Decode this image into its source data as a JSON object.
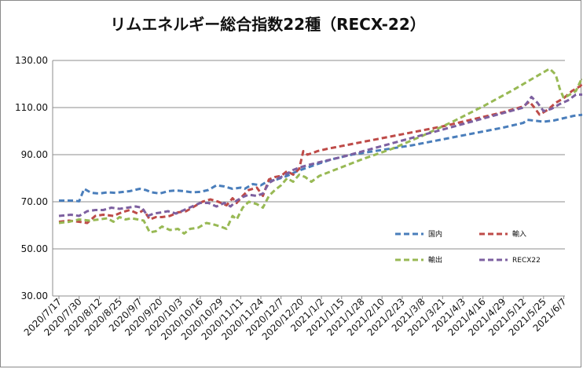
{
  "chart_data": {
    "type": "line",
    "title": "リムエネルギー総合指数22種（RECX-22）",
    "xlabel": "",
    "ylabel": "",
    "ylim": [
      30,
      130
    ],
    "yticks": [
      "30.00",
      "50.00",
      "70.00",
      "90.00",
      "110.00",
      "130.00"
    ],
    "grid": "horizontal",
    "legend": "inside-lower-right, two columns",
    "categories": [
      "2020/7/17",
      "2020/7/30",
      "2020/8/12",
      "2020/8/25",
      "2020/9/7",
      "2020/9/20",
      "2020/10/3",
      "2020/10/16",
      "2020/10/29",
      "2020/11/11",
      "2020/11/24",
      "2020/12/7",
      "2020/12/20",
      "2021/1/2",
      "2021/1/15",
      "2021/1/28",
      "2021/2/10",
      "2021/2/23",
      "2021/3/8",
      "2021/3/21",
      "2021/4/3",
      "2021/4/16",
      "2021/4/29",
      "2021/5/12",
      "2021/5/25",
      "2021/6/7"
    ],
    "series": [
      {
        "name": "国内",
        "color": "#4a7ebb",
        "points": [
          [
            0,
            70.5
          ],
          [
            0.7,
            70.5
          ],
          [
            1.0,
            70.2
          ],
          [
            1.25,
            75.5
          ],
          [
            1.6,
            73.8
          ],
          [
            2.0,
            73.5
          ],
          [
            2.4,
            74.0
          ],
          [
            2.8,
            73.8
          ],
          [
            3.2,
            74.2
          ],
          [
            3.5,
            74.5
          ],
          [
            4.0,
            75.5
          ],
          [
            4.3,
            75.0
          ],
          [
            4.6,
            74.0
          ],
          [
            5.0,
            73.5
          ],
          [
            5.4,
            74.5
          ],
          [
            5.8,
            74.8
          ],
          [
            6.2,
            74.5
          ],
          [
            6.6,
            74.0
          ],
          [
            7.0,
            74.2
          ],
          [
            7.4,
            75.0
          ],
          [
            7.8,
            77.0
          ],
          [
            8.2,
            76.5
          ],
          [
            8.6,
            75.5
          ],
          [
            9.0,
            76.0
          ],
          [
            9.2,
            75.5
          ],
          [
            9.6,
            77.5
          ],
          [
            10.0,
            77.0
          ],
          [
            10.3,
            78.5
          ],
          [
            10.8,
            79.5
          ],
          [
            11.3,
            81.0
          ],
          [
            11.8,
            83.0
          ],
          [
            12.3,
            84.5
          ],
          [
            12.8,
            86.0
          ],
          [
            13.5,
            88.0
          ],
          [
            14.5,
            90.0
          ],
          [
            16.0,
            92.0
          ],
          [
            17.5,
            94.0
          ],
          [
            19.0,
            96.5
          ],
          [
            20.5,
            99.0
          ],
          [
            22.0,
            101.5
          ],
          [
            23.0,
            103.5
          ],
          [
            23.2,
            104.8
          ],
          [
            23.5,
            104.5
          ],
          [
            24.0,
            104.0
          ],
          [
            24.5,
            104.5
          ],
          [
            25.0,
            105.5
          ],
          [
            25.5,
            106.5
          ],
          [
            26.0,
            107.0
          ],
          [
            26.3,
            107.3
          ]
        ]
      },
      {
        "name": "輸入",
        "color": "#be4b48",
        "points": [
          [
            0,
            61.5
          ],
          [
            0.5,
            62.0
          ],
          [
            1.0,
            61.5
          ],
          [
            1.4,
            61.0
          ],
          [
            1.8,
            64.0
          ],
          [
            2.2,
            64.5
          ],
          [
            2.7,
            64.0
          ],
          [
            3.1,
            65.5
          ],
          [
            3.5,
            66.5
          ],
          [
            3.9,
            65.0
          ],
          [
            4.2,
            66.5
          ],
          [
            4.5,
            62.5
          ],
          [
            4.8,
            63.5
          ],
          [
            5.1,
            63.5
          ],
          [
            5.5,
            64.0
          ],
          [
            5.9,
            65.5
          ],
          [
            6.3,
            66.0
          ],
          [
            6.7,
            68.0
          ],
          [
            7.1,
            70.0
          ],
          [
            7.5,
            71.0
          ],
          [
            7.9,
            70.0
          ],
          [
            8.3,
            68.5
          ],
          [
            8.6,
            71.5
          ],
          [
            8.8,
            69.5
          ],
          [
            9.1,
            72.5
          ],
          [
            9.4,
            75.0
          ],
          [
            9.8,
            76.0
          ],
          [
            10.1,
            72.5
          ],
          [
            10.4,
            79.5
          ],
          [
            10.7,
            80.5
          ],
          [
            11.0,
            81.0
          ],
          [
            11.3,
            83.0
          ],
          [
            11.6,
            81.5
          ],
          [
            11.9,
            84.0
          ],
          [
            12.1,
            91.5
          ],
          [
            12.3,
            90.0
          ],
          [
            12.5,
            90.5
          ],
          [
            12.8,
            91.5
          ],
          [
            13.3,
            92.5
          ],
          [
            14.5,
            94.5
          ],
          [
            16.0,
            97.0
          ],
          [
            17.5,
            99.5
          ],
          [
            19.0,
            102.0
          ],
          [
            20.5,
            105.0
          ],
          [
            22.0,
            108.0
          ],
          [
            23.0,
            110.5
          ],
          [
            23.3,
            112.5
          ],
          [
            23.5,
            110.5
          ],
          [
            23.8,
            107.0
          ],
          [
            24.2,
            109.0
          ],
          [
            24.6,
            112.0
          ],
          [
            25.0,
            114.0
          ],
          [
            25.4,
            117.0
          ],
          [
            25.8,
            119.0
          ],
          [
            26.1,
            121.5
          ],
          [
            26.3,
            122.5
          ]
        ]
      },
      {
        "name": "輸出",
        "color": "#98b954",
        "points": [
          [
            0,
            61.0
          ],
          [
            0.5,
            61.5
          ],
          [
            1.0,
            62.5
          ],
          [
            1.5,
            62.0
          ],
          [
            2.0,
            62.5
          ],
          [
            2.4,
            63.0
          ],
          [
            2.7,
            61.5
          ],
          [
            3.0,
            63.5
          ],
          [
            3.3,
            62.5
          ],
          [
            3.6,
            63.0
          ],
          [
            3.9,
            62.5
          ],
          [
            4.2,
            62.0
          ],
          [
            4.5,
            57.0
          ],
          [
            4.8,
            57.5
          ],
          [
            5.1,
            59.5
          ],
          [
            5.5,
            58.0
          ],
          [
            5.9,
            58.5
          ],
          [
            6.2,
            56.5
          ],
          [
            6.5,
            58.5
          ],
          [
            6.9,
            59.0
          ],
          [
            7.3,
            61.0
          ],
          [
            7.6,
            60.5
          ],
          [
            8.0,
            59.5
          ],
          [
            8.3,
            58.5
          ],
          [
            8.6,
            64.0
          ],
          [
            8.8,
            62.5
          ],
          [
            9.1,
            67.5
          ],
          [
            9.4,
            70.0
          ],
          [
            9.8,
            69.0
          ],
          [
            10.1,
            67.5
          ],
          [
            10.4,
            72.5
          ],
          [
            10.7,
            75.0
          ],
          [
            11.0,
            77.0
          ],
          [
            11.3,
            80.0
          ],
          [
            11.6,
            78.5
          ],
          [
            11.9,
            81.5
          ],
          [
            12.2,
            80.5
          ],
          [
            12.5,
            78.5
          ],
          [
            12.9,
            81.0
          ],
          [
            13.8,
            84.0
          ],
          [
            15.0,
            88.0
          ],
          [
            16.5,
            92.5
          ],
          [
            18.0,
            98.0
          ],
          [
            19.5,
            104.0
          ],
          [
            21.0,
            110.5
          ],
          [
            22.5,
            117.5
          ],
          [
            23.5,
            122.5
          ],
          [
            24.0,
            125.0
          ],
          [
            24.3,
            126.5
          ],
          [
            24.6,
            124.0
          ],
          [
            24.8,
            118.0
          ],
          [
            25.0,
            114.0
          ],
          [
            25.3,
            115.5
          ],
          [
            25.6,
            117.0
          ],
          [
            25.9,
            122.5
          ],
          [
            26.2,
            118.5
          ],
          [
            26.5,
            122.5
          ]
        ]
      },
      {
        "name": "RECX22",
        "color": "#7d60a0",
        "points": [
          [
            0,
            64.0
          ],
          [
            0.6,
            64.5
          ],
          [
            1.0,
            64.0
          ],
          [
            1.4,
            66.0
          ],
          [
            1.8,
            66.5
          ],
          [
            2.2,
            66.5
          ],
          [
            2.6,
            67.5
          ],
          [
            3.0,
            67.0
          ],
          [
            3.4,
            67.5
          ],
          [
            3.8,
            68.0
          ],
          [
            4.1,
            67.5
          ],
          [
            4.4,
            64.0
          ],
          [
            4.7,
            65.0
          ],
          [
            5.1,
            65.5
          ],
          [
            5.4,
            66.0
          ],
          [
            5.8,
            65.0
          ],
          [
            6.2,
            66.5
          ],
          [
            6.6,
            68.0
          ],
          [
            7.0,
            69.5
          ],
          [
            7.4,
            69.5
          ],
          [
            7.8,
            68.0
          ],
          [
            8.2,
            69.5
          ],
          [
            8.5,
            68.0
          ],
          [
            8.8,
            70.5
          ],
          [
            9.1,
            72.0
          ],
          [
            9.4,
            73.0
          ],
          [
            9.8,
            72.5
          ],
          [
            10.1,
            73.5
          ],
          [
            10.4,
            78.0
          ],
          [
            10.7,
            79.5
          ],
          [
            11.0,
            80.5
          ],
          [
            11.3,
            82.0
          ],
          [
            11.6,
            83.5
          ],
          [
            11.9,
            84.5
          ],
          [
            12.3,
            85.5
          ],
          [
            13.0,
            87.0
          ],
          [
            14.0,
            89.0
          ],
          [
            15.5,
            92.5
          ],
          [
            17.0,
            96.0
          ],
          [
            18.5,
            99.5
          ],
          [
            20.0,
            103.0
          ],
          [
            21.5,
            106.5
          ],
          [
            23.0,
            110.0
          ],
          [
            23.4,
            114.5
          ],
          [
            23.7,
            112.0
          ],
          [
            24.0,
            108.5
          ],
          [
            24.4,
            109.5
          ],
          [
            24.8,
            111.5
          ],
          [
            25.2,
            113.0
          ],
          [
            25.6,
            115.5
          ],
          [
            26.0,
            115.5
          ],
          [
            26.2,
            115.0
          ],
          [
            26.5,
            117.5
          ]
        ]
      }
    ]
  }
}
